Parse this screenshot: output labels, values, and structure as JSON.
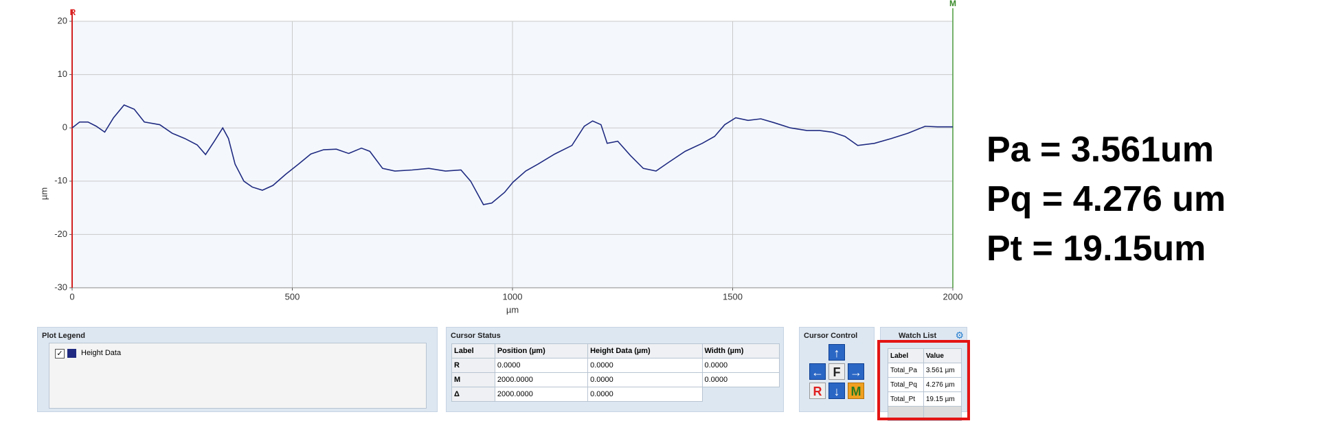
{
  "chart_data": {
    "type": "line",
    "x": [
      0,
      17,
      36,
      55,
      74,
      94,
      118,
      141,
      164,
      199,
      227,
      256,
      284,
      303,
      323,
      342,
      355,
      370,
      390,
      409,
      432,
      456,
      485,
      514,
      542,
      571,
      600,
      628,
      657,
      676,
      705,
      733,
      772,
      810,
      848,
      883,
      905,
      934,
      953,
      982,
      1001,
      1030,
      1058,
      1096,
      1135,
      1163,
      1182,
      1201,
      1215,
      1239,
      1268,
      1297,
      1326,
      1354,
      1392,
      1431,
      1459,
      1482,
      1507,
      1535,
      1564,
      1593,
      1631,
      1669,
      1698,
      1726,
      1755,
      1784,
      1822,
      1860,
      1898,
      1937,
      1965,
      2000
    ],
    "series": [
      {
        "name": "Height Data",
        "color": "#1f2a80",
        "values": [
          0,
          1.1,
          1.1,
          0.3,
          -0.8,
          1.9,
          4.3,
          3.5,
          1.1,
          0.6,
          -1,
          -2,
          -3.2,
          -5,
          -2.5,
          0,
          -2,
          -6.8,
          -10,
          -11.1,
          -11.7,
          -10.8,
          -8.7,
          -6.8,
          -4.9,
          -4.1,
          -4,
          -4.8,
          -3.8,
          -4.4,
          -7.6,
          -8.1,
          -7.9,
          -7.6,
          -8.1,
          -7.9,
          -10,
          -14.4,
          -14.1,
          -12.1,
          -10.2,
          -8.1,
          -6.8,
          -4.9,
          -3.3,
          0.3,
          1.3,
          0.6,
          -2.9,
          -2.5,
          -5.2,
          -7.6,
          -8.1,
          -6.5,
          -4.4,
          -2.9,
          -1.6,
          0.6,
          1.9,
          1.4,
          1.7,
          1,
          0,
          -0.5,
          -0.5,
          -0.8,
          -1.6,
          -3.3,
          -2.9,
          -2,
          -1,
          0.3,
          0.2,
          0.2
        ]
      }
    ],
    "xlabel": "µm",
    "ylabel": "µm",
    "xlim": [
      0,
      2000
    ],
    "xticks": [
      0,
      500,
      1000,
      1500,
      2000
    ],
    "ylim": [
      -30,
      20
    ],
    "yticks": [
      20,
      10,
      0,
      -10,
      -20,
      -30
    ],
    "grid": true,
    "cursors": {
      "left": "R",
      "right": "M"
    }
  },
  "plot_legend": {
    "title": "Plot Legend"
  },
  "cursor_status": {
    "title": "Cursor Status",
    "header": [
      "Label",
      "Position (µm)",
      "Height Data (µm)",
      "Width (µm)"
    ],
    "rows": [
      [
        "R",
        "0.0000",
        "0.0000",
        "0.0000"
      ],
      [
        "M",
        "2000.0000",
        "0.0000",
        "0.0000"
      ],
      [
        "Δ",
        "2000.0000",
        "0.0000"
      ]
    ]
  },
  "cursor_control": {
    "title": "Cursor Control",
    "center": "F",
    "left": "R",
    "right": "M"
  },
  "watch_list": {
    "title": "Watch List",
    "header": [
      "Label",
      "Value"
    ],
    "rows": [
      [
        "Total_Pa",
        "3.561 µm"
      ],
      [
        "Total_Pq",
        "4.276 µm"
      ],
      [
        "Total_Pt",
        "19.15 µm"
      ]
    ]
  },
  "results": [
    "Pa = 3.561um",
    "Pq = 4.276 um",
    "Pt = 19.15um"
  ]
}
